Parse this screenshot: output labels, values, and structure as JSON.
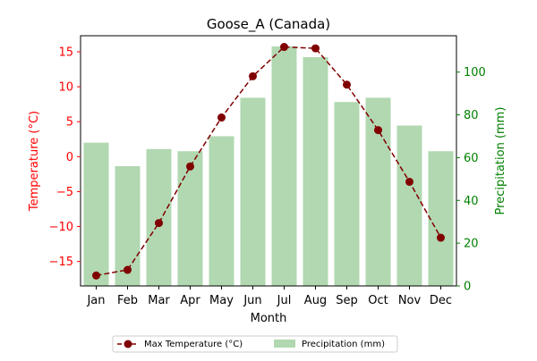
{
  "chart_data": {
    "type": "bar+line",
    "title": "Goose_A (Canada)",
    "xlabel": "Month",
    "categories": [
      "Jan",
      "Feb",
      "Mar",
      "Apr",
      "May",
      "Jun",
      "Jul",
      "Aug",
      "Sep",
      "Oct",
      "Nov",
      "Dec"
    ],
    "y_left": {
      "label": "Temperature (°C)",
      "lim": [
        -18.5,
        17.3
      ],
      "ticks": [
        -15,
        -10,
        -5,
        0,
        5,
        10,
        15
      ],
      "tick_labels": [
        "−15",
        "−10",
        "−5",
        "0",
        "5",
        "10",
        "15"
      ],
      "color": "#ff0000"
    },
    "y_right": {
      "label": "Precipitation (mm)",
      "lim": [
        0,
        117
      ],
      "ticks": [
        0,
        20,
        40,
        60,
        80,
        100
      ],
      "tick_labels": [
        "0",
        "20",
        "40",
        "60",
        "80",
        "100"
      ],
      "color": "#008000"
    },
    "series": [
      {
        "name": "Max Temperature (°C)",
        "type": "line",
        "axis": "left",
        "color": "#800000",
        "values": [
          -17.0,
          -16.2,
          -9.5,
          -1.4,
          5.6,
          11.5,
          15.7,
          15.5,
          10.3,
          3.8,
          -3.6,
          -11.6
        ]
      },
      {
        "name": "Precipitation (mm)",
        "type": "bar",
        "axis": "right",
        "color": "#b1d8b1",
        "values": [
          67,
          56,
          64,
          63,
          70,
          88,
          112,
          107,
          86,
          88,
          75,
          63
        ]
      }
    ],
    "legend": {
      "placement": "bottom-center"
    }
  }
}
